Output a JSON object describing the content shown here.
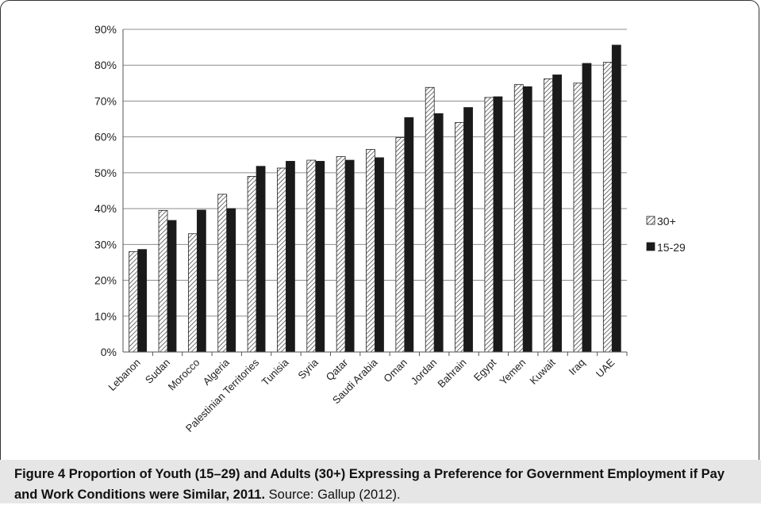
{
  "chart_data": {
    "type": "bar",
    "categories": [
      "Lebanon",
      "Sudan",
      "Morocco",
      "Algeria",
      "Palestinian Territories",
      "Tunisia",
      "Syria",
      "Qatar",
      "Saudi Arabia",
      "Oman",
      "Jordan",
      "Bahrain",
      "Egypt",
      "Yemen",
      "Kuwait",
      "Iraq",
      "UAE"
    ],
    "series": [
      {
        "name": "30+",
        "values": [
          28,
          39.5,
          33,
          44,
          49,
          51.3,
          53.5,
          54.5,
          56.5,
          59.8,
          73.8,
          64,
          71,
          74.6,
          76.2,
          75,
          80.8
        ],
        "pattern": "hatch"
      },
      {
        "name": "15-29",
        "values": [
          28.6,
          36.7,
          39.6,
          40,
          51.8,
          53.2,
          53.2,
          53.5,
          54.2,
          65.4,
          66.5,
          68.2,
          71.2,
          74,
          77.3,
          80.5,
          85.6
        ],
        "color": "#1a1a1a"
      }
    ],
    "ylim": [
      0,
      90
    ],
    "yticks": [
      "0%",
      "10%",
      "20%",
      "30%",
      "40%",
      "50%",
      "60%",
      "70%",
      "80%",
      "90%"
    ],
    "grid": true,
    "legend_position": "right"
  },
  "caption": {
    "label": "Figure 4",
    "title": " Proportion of Youth (15–29) and Adults (30+) Expressing a Preference for Government Employment if Pay and Work Conditions were Similar, 2011.",
    "source": " Source: Gallup (2012)."
  }
}
